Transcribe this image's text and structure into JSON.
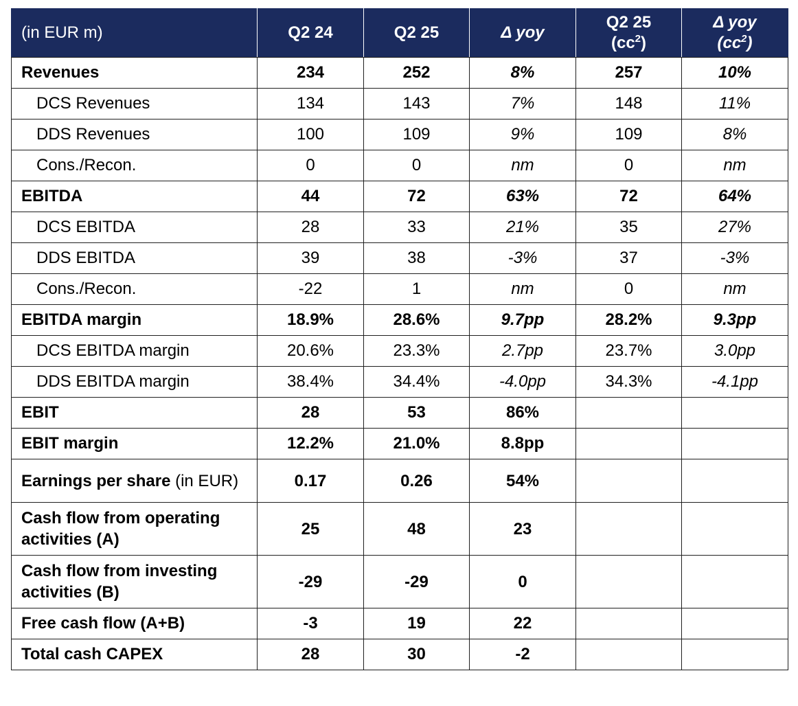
{
  "header": {
    "label": "(in EUR m)",
    "c1": "Q2 24",
    "c2": "Q2 25",
    "c3": "Δ yoy",
    "c4_line1": "Q2 25",
    "c4_line2a": "(cc",
    "c4_sup": "2",
    "c4_line2b": ")",
    "c5_line1": "Δ yoy",
    "c5_line2a": "(cc",
    "c5_sup": "2",
    "c5_line2b": ")"
  },
  "rows": [
    {
      "label": "Revenues",
      "q224": "234",
      "q225": "252",
      "yoy": "8%",
      "q225cc": "257",
      "yoycc": "10%"
    },
    {
      "label": "DCS Revenues",
      "q224": "134",
      "q225": "143",
      "yoy": "7%",
      "q225cc": "148",
      "yoycc": "11%"
    },
    {
      "label": "DDS Revenues",
      "q224": "100",
      "q225": "109",
      "yoy": "9%",
      "q225cc": "109",
      "yoycc": "8%"
    },
    {
      "label": "Cons./Recon.",
      "q224": "0",
      "q225": "0",
      "yoy": "nm",
      "q225cc": "0",
      "yoycc": "nm"
    },
    {
      "label": "EBITDA",
      "q224": "44",
      "q225": "72",
      "yoy": "63%",
      "q225cc": "72",
      "yoycc": "64%"
    },
    {
      "label": "DCS EBITDA",
      "q224": "28",
      "q225": "33",
      "yoy": "21%",
      "q225cc": "35",
      "yoycc": "27%"
    },
    {
      "label": "DDS EBITDA",
      "q224": "39",
      "q225": "38",
      "yoy": "-3%",
      "q225cc": "37",
      "yoycc": "-3%"
    },
    {
      "label": "Cons./Recon.",
      "q224": "-22",
      "q225": "1",
      "yoy": "nm",
      "q225cc": "0",
      "yoycc": "nm"
    },
    {
      "label": "EBITDA margin",
      "q224": "18.9%",
      "q225": "28.6%",
      "yoy": "9.7pp",
      "q225cc": "28.2%",
      "yoycc": "9.3pp"
    },
    {
      "label": "DCS EBITDA margin",
      "q224": "20.6%",
      "q225": "23.3%",
      "yoy": "2.7pp",
      "q225cc": "23.7%",
      "yoycc": "3.0pp"
    },
    {
      "label": "DDS EBITDA margin",
      "q224": "38.4%",
      "q225": "34.4%",
      "yoy": "-4.0pp",
      "q225cc": "34.3%",
      "yoycc": "-4.1pp"
    },
    {
      "label": "EBIT",
      "q224": "28",
      "q225": "53",
      "yoy": "86%"
    },
    {
      "label": "EBIT margin",
      "q224": "12.2%",
      "q225": "21.0%",
      "yoy": "8.8pp"
    },
    {
      "label_bold": "Earnings per share",
      "label_rest": " (in EUR)",
      "q224": "0.17",
      "q225": "0.26",
      "yoy": "54%"
    },
    {
      "label_line1": "Cash flow from operating",
      "label_line2": "activities (A)",
      "q224": "25",
      "q225": "48",
      "yoy": "23"
    },
    {
      "label_line1": "Cash flow from investing",
      "label_line2": "activities (B)",
      "q224": "-29",
      "q225": "-29",
      "yoy": "0"
    },
    {
      "label": "Free cash flow (A+B)",
      "q224": "-3",
      "q225": "19",
      "yoy": "22"
    },
    {
      "label": "Total cash CAPEX",
      "q224": "28",
      "q225": "30",
      "yoy": "-2"
    }
  ]
}
